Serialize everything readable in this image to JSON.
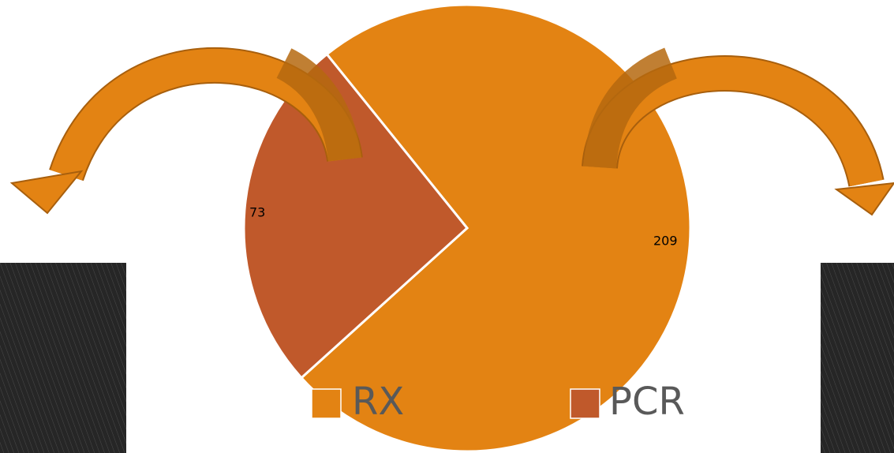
{
  "chart_data": {
    "type": "pie",
    "categories": [
      "RX",
      "PCR"
    ],
    "values": [
      209,
      73
    ],
    "colors": [
      "#e38313",
      "#c0592b"
    ],
    "legend": "bottom"
  }
}
